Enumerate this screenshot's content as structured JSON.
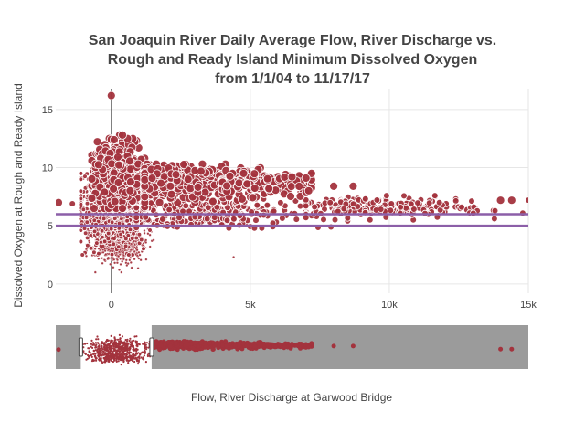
{
  "chart_data": {
    "type": "scatter",
    "title_lines": [
      "San Joaquin River Daily Average Flow, River Discharge vs.",
      "Rough and Ready Island Minimum Dissolved Oxygen",
      "from 1/1/04 to 11/17/17"
    ],
    "xlabel": "Flow, River Discharge at Garwood Bridge",
    "ylabel": "Dissolved Oxygen at Rough and Ready Island",
    "xlim": [
      -2000,
      15000
    ],
    "ylim": [
      -0.8,
      16.8
    ],
    "x_ticks": [
      0,
      5000,
      10000,
      15000
    ],
    "x_tick_labels": [
      "0",
      "5k",
      "10k",
      "15k"
    ],
    "y_ticks": [
      0,
      5,
      10,
      15
    ],
    "y_tick_labels": [
      "0",
      "5",
      "10",
      "15"
    ],
    "reference_lines": [
      {
        "y": 6.0
      },
      {
        "y": 5.0
      }
    ],
    "colors": {
      "marker_fill": "#a3333d",
      "marker_stroke": "#ffffff",
      "reference_line": "#8c5fa8",
      "grid": "#e6e6e6",
      "zero_line": "#444444",
      "rangeslider_bg": "#9b9b9b",
      "rangeslider_window": "#ffffff",
      "tick_text": "#444444",
      "title_text": "#444444"
    },
    "grid": true,
    "legend": "none",
    "rangeslider": {
      "full_range": [
        -2000,
        15000
      ],
      "selected_range": [
        -1100,
        1450
      ]
    },
    "clusters": [
      {
        "x_mean": 200,
        "x_sd": 500,
        "x_min": -900,
        "x_max": 1600,
        "y_mean": 3.6,
        "y_sd": 0.9,
        "y_min": 1.0,
        "y_max": 5.5,
        "n": 600,
        "size": "tiny"
      },
      {
        "x_mean": 0,
        "x_sd": 550,
        "x_min": -1100,
        "x_max": 1600,
        "y_mean": 6.5,
        "y_sd": 1.6,
        "y_min": 2.5,
        "y_max": 9.5,
        "n": 900,
        "size": "small"
      },
      {
        "x_mean": 200,
        "x_sd": 450,
        "x_min": -700,
        "x_max": 1200,
        "y_mean": 9.2,
        "y_sd": 1.4,
        "y_min": 6.5,
        "y_max": 12.5,
        "n": 500,
        "size": "large"
      },
      {
        "x_mean": 2600,
        "x_sd": 1300,
        "x_min": 1200,
        "x_max": 5500,
        "y_mean": 8.8,
        "y_sd": 0.7,
        "y_min": 7.0,
        "y_max": 10.3,
        "n": 500,
        "size": "large"
      },
      {
        "x_mean": 5500,
        "x_sd": 1200,
        "x_min": 4000,
        "x_max": 7200,
        "y_mean": 8.6,
        "y_sd": 0.5,
        "y_min": 7.3,
        "y_max": 9.5,
        "n": 160,
        "size": "large"
      },
      {
        "x_mean": 3500,
        "x_sd": 2000,
        "x_min": 900,
        "x_max": 8500,
        "y_mean": 6.1,
        "y_sd": 0.6,
        "y_min": 4.8,
        "y_max": 7.3,
        "n": 320,
        "size": "medium"
      },
      {
        "x_mean": 9500,
        "x_sd": 2000,
        "x_min": 7000,
        "x_max": 15000,
        "y_mean": 6.6,
        "y_sd": 0.45,
        "y_min": 5.5,
        "y_max": 7.6,
        "n": 230,
        "size": "medium"
      }
    ],
    "points": [
      {
        "x": 0,
        "y": 16.2,
        "size": "large"
      },
      {
        "x": 300,
        "y": 12.8,
        "size": "large"
      },
      {
        "x": 400,
        "y": 12.8,
        "size": "large"
      },
      {
        "x": 100,
        "y": 12.4,
        "size": "large"
      },
      {
        "x": -1900,
        "y": 7.0,
        "size": "large"
      },
      {
        "x": -1400,
        "y": 6.9,
        "size": "medium"
      },
      {
        "x": 6500,
        "y": 9.2,
        "size": "large"
      },
      {
        "x": 7000,
        "y": 9.1,
        "size": "large"
      },
      {
        "x": 8000,
        "y": 8.4,
        "size": "large"
      },
      {
        "x": 8700,
        "y": 8.4,
        "size": "large"
      },
      {
        "x": 4400,
        "y": 2.3,
        "size": "tiny"
      },
      {
        "x": 6700,
        "y": 8.5,
        "size": "medium"
      },
      {
        "x": 7900,
        "y": 4.9,
        "size": "medium"
      },
      {
        "x": 14000,
        "y": 7.2,
        "size": "large"
      },
      {
        "x": 14400,
        "y": 7.2,
        "size": "large"
      },
      {
        "x": 13800,
        "y": 6.3,
        "size": "medium"
      },
      {
        "x": 14800,
        "y": 6.1,
        "size": "medium"
      },
      {
        "x": 12600,
        "y": 6.6,
        "size": "medium"
      },
      {
        "x": 11800,
        "y": 7.0,
        "size": "medium"
      }
    ]
  }
}
